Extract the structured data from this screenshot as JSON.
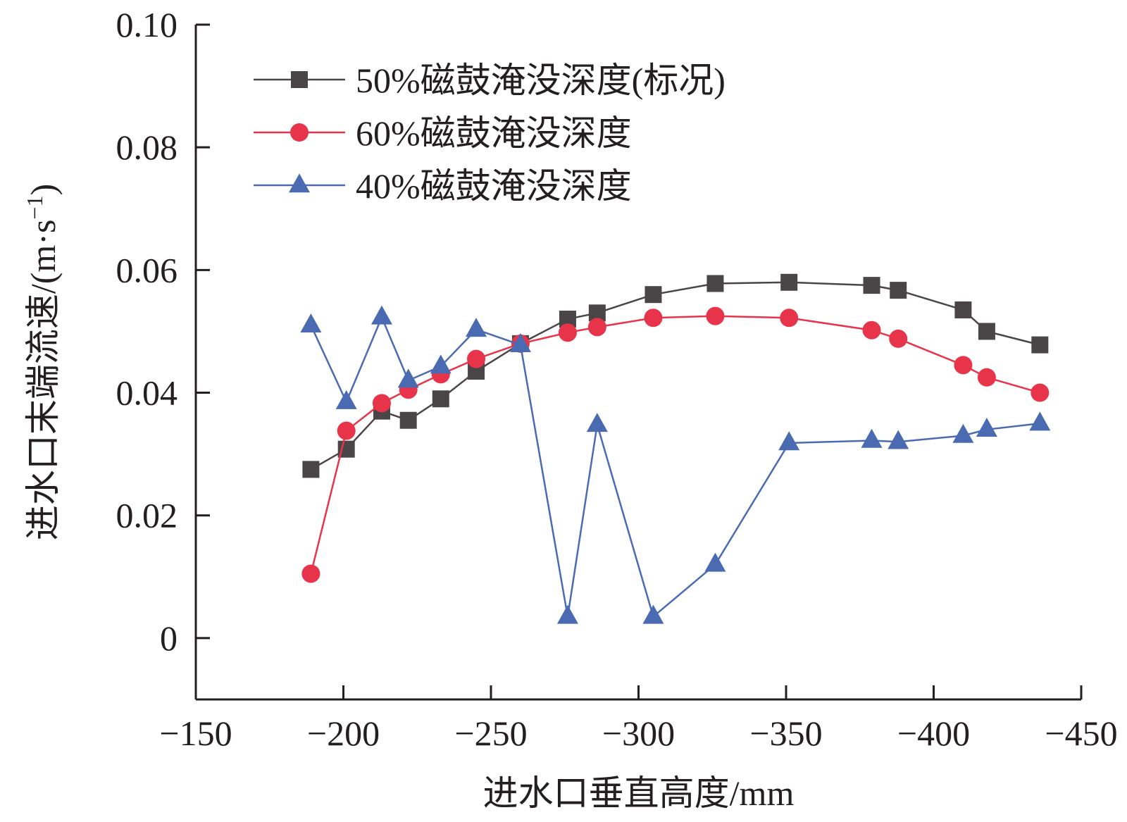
{
  "chart_data": {
    "type": "line",
    "xlabel": "进水口垂直高度/mm",
    "ylabel": "进水口末端流速/(m·s",
    "ylabel_sup": "−1",
    "ylabel_close": ")",
    "xlim": [
      -150,
      -450
    ],
    "ylim": [
      -0.01,
      0.1
    ],
    "xticks": [
      -150,
      -200,
      -250,
      -300,
      -350,
      -400,
      -450
    ],
    "xtick_labels": [
      "−150",
      "−200",
      "−250",
      "−300",
      "−350",
      "−400",
      "−450"
    ],
    "yticks": [
      0,
      0.02,
      0.04,
      0.06,
      0.08,
      0.1
    ],
    "ytick_labels": [
      "0",
      "0.02",
      "0.04",
      "0.06",
      "0.08",
      "0.10"
    ],
    "grid": false,
    "legend_position": "top-left",
    "x": [
      -189,
      -201,
      -213,
      -222,
      -233,
      -245,
      -260,
      -276,
      -286,
      -305,
      -326,
      -351,
      -379,
      -388,
      -410,
      -418,
      -436
    ],
    "series": [
      {
        "name": "50%磁鼓淹没深度(标况)",
        "color": "#4a4546",
        "marker": "square",
        "values": [
          0.0275,
          0.0308,
          0.037,
          0.0355,
          0.039,
          0.0435,
          0.048,
          0.052,
          0.053,
          0.056,
          0.0578,
          0.058,
          0.0575,
          0.0567,
          0.0535,
          0.05,
          0.0478
        ]
      },
      {
        "name": "60%磁鼓淹没深度",
        "color": "#e8344a",
        "marker": "circle",
        "values": [
          0.0105,
          0.0338,
          0.0383,
          0.0405,
          0.043,
          0.0455,
          0.048,
          0.0498,
          0.0507,
          0.0522,
          0.0525,
          0.0522,
          0.0502,
          0.0488,
          0.0445,
          0.0425,
          0.04
        ]
      },
      {
        "name": "40%磁鼓淹没深度",
        "color": "#4a6bb2",
        "marker": "triangle",
        "values": [
          0.051,
          0.0385,
          0.0523,
          0.042,
          0.0443,
          0.0503,
          0.0478,
          0.0035,
          0.0348,
          0.0035,
          0.012,
          0.0318,
          0.0322,
          0.032,
          0.033,
          0.034,
          0.035
        ]
      }
    ]
  }
}
